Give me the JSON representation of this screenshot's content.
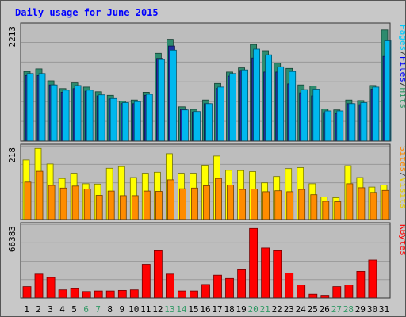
{
  "chart_data": {
    "type": "bar",
    "title": "Daily usage for June 2015",
    "days": [
      "1",
      "2",
      "3",
      "4",
      "5",
      "6",
      "7",
      "8",
      "9",
      "10",
      "11",
      "12",
      "13",
      "14",
      "15",
      "16",
      "17",
      "18",
      "19",
      "20",
      "21",
      "22",
      "23",
      "24",
      "25",
      "26",
      "27",
      "28",
      "29",
      "30",
      "31"
    ],
    "weekend_days": [
      "6",
      "7",
      "13",
      "14",
      "20",
      "21",
      "27",
      "28"
    ],
    "panels": [
      {
        "id": "pages-files-hits",
        "ymax": 2213,
        "ymax_label": "2213",
        "axis_labels": [
          "Pages",
          "/",
          "Files",
          "/",
          "Hits"
        ],
        "axis_label_colors": [
          "#00ccff",
          "#333333",
          "#0000ff",
          "#333333",
          "#339966"
        ],
        "series": [
          {
            "name": "Hits",
            "color": "#2e8b6e",
            "values": [
              1340,
              1390,
              1160,
              1010,
              1120,
              1040,
              950,
              880,
              770,
              790,
              940,
              1690,
              1960,
              660,
              610,
              790,
              1110,
              1330,
              1410,
              1860,
              1740,
              1500,
              1400,
              1080,
              1060,
              620,
              600,
              790,
              780,
              1070,
              2140
            ]
          },
          {
            "name": "Files",
            "color": "#2030a0",
            "values": [
              1260,
              1260,
              1080,
              940,
              1010,
              960,
              870,
              810,
              720,
              720,
              880,
              1590,
              1830,
              610,
              560,
              720,
              1010,
              1250,
              1360,
              1600,
              1330,
              1330,
              1100,
              930,
              870,
              550,
              530,
              720,
              700,
              1000,
              1630
            ]
          },
          {
            "name": "Pages",
            "color": "#00b8ee",
            "values": [
              1300,
              1300,
              1080,
              980,
              1070,
              980,
              890,
              820,
              740,
              760,
              900,
              1570,
              1750,
              600,
              570,
              720,
              1040,
              1300,
              1370,
              1770,
              1660,
              1430,
              1340,
              990,
              1000,
              580,
              580,
              720,
              740,
              1040,
              1930
            ]
          }
        ]
      },
      {
        "id": "visits-sites",
        "ymax": 218,
        "ymax_label": "218",
        "axis_labels": [
          "Sites",
          "/",
          "Visits"
        ],
        "axis_label_colors": [
          "#ff8800",
          "#333333",
          "#e6cc00"
        ],
        "series": [
          {
            "name": "Visits",
            "color": "#ffff00",
            "values": [
              180,
              215,
              168,
              124,
              140,
              108,
              107,
              155,
              160,
              127,
              140,
              143,
              199,
              140,
              140,
              164,
              192,
              149,
              148,
              145,
              111,
              130,
              154,
              157,
              108,
              68,
              66,
              163,
              127,
              98,
              104
            ]
          },
          {
            "name": "Sites",
            "color": "#ff8c00",
            "values": [
              113,
              146,
              103,
              95,
              101,
              92,
              73,
              86,
              72,
              72,
              86,
              85,
              120,
              93,
              95,
              102,
              124,
              104,
              91,
              92,
              84,
              87,
              84,
              91,
              75,
              55,
              54,
              108,
              96,
              82,
              88
            ]
          }
        ]
      },
      {
        "id": "kbytes",
        "ymax": 66383,
        "ymax_label": "66383",
        "axis_labels": [
          "KBytes"
        ],
        "axis_label_colors": [
          "#ff0000"
        ],
        "series": [
          {
            "name": "KBytes",
            "color": "#ff0000",
            "values": [
              10500,
              22000,
              19000,
              7500,
              8500,
              6000,
              6500,
              6500,
              7000,
              7500,
              31000,
              43500,
              22000,
              6500,
              6500,
              12500,
              21000,
              18000,
              26000,
              64000,
              46000,
              43500,
              23000,
              12000,
              3500,
              2500,
              10500,
              12000,
              24500,
              35000,
              0
            ]
          }
        ]
      }
    ]
  }
}
